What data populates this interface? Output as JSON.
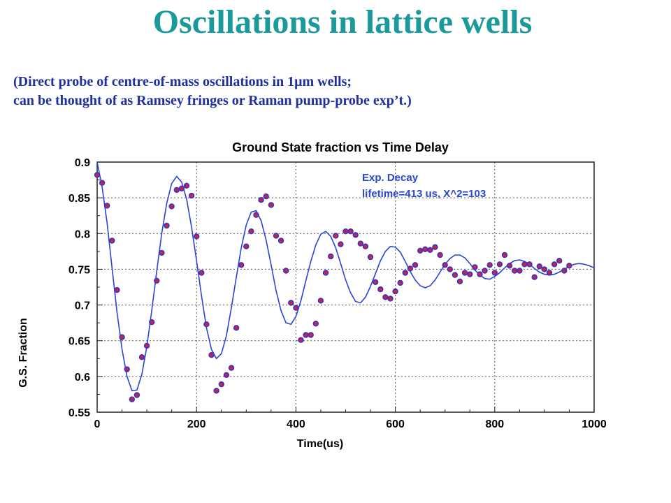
{
  "slide": {
    "title": "Oscillations in lattice wells",
    "subtitle_line1": "(Direct probe of centre-of-mass oscillations in 1μm wells;",
    "subtitle_line2": "can be thought of as Ramsey fringes or Raman pump-probe exp’t.)"
  },
  "chart_data": {
    "type": "scatter",
    "title": "Ground State fraction vs Time Delay",
    "xlabel": "Time(us)",
    "ylabel": "G.S. Fraction",
    "xlim": [
      0,
      1000
    ],
    "ylim": [
      0.55,
      0.9
    ],
    "x_ticks": [
      "0",
      "200",
      "400",
      "600",
      "800",
      "1000"
    ],
    "y_ticks": [
      "0.55",
      "0.6",
      "0.65",
      "0.7",
      "0.75",
      "0.8",
      "0.85",
      "0.9"
    ],
    "grid": true,
    "annotation_line1": "Exp. Decay",
    "annotation_line2": "lifetime=413 us, X^2=103",
    "colors": {
      "points": "#c0283c",
      "point_edge": "#3a2fd0",
      "fit": "#2a44d8",
      "annotation": "#2a44d8"
    },
    "series": [
      {
        "style": "points",
        "x": [
          0,
          10,
          20,
          30,
          40,
          50,
          60,
          70,
          80,
          90,
          100,
          110,
          120,
          130,
          140,
          150,
          160,
          170,
          180,
          190,
          200,
          210,
          220,
          230,
          240,
          250,
          260,
          270,
          280,
          290,
          300,
          310,
          320,
          330,
          340,
          350,
          360,
          370,
          380,
          390,
          400,
          410,
          420,
          430,
          440,
          450,
          460,
          470,
          480,
          490,
          500,
          510,
          520,
          530,
          540,
          550,
          560,
          570,
          580,
          590,
          600,
          610,
          620,
          630,
          640,
          650,
          660,
          670,
          680,
          690,
          700,
          710,
          720,
          730,
          740,
          750,
          760,
          770,
          780,
          790,
          800,
          810,
          820,
          830,
          840,
          850,
          860,
          870,
          880,
          890,
          900,
          910,
          920,
          930,
          940,
          950
        ],
        "y": [
          0.882,
          0.871,
          0.839,
          0.79,
          0.721,
          0.655,
          0.61,
          0.568,
          0.574,
          0.627,
          0.643,
          0.676,
          0.734,
          0.773,
          0.811,
          0.838,
          0.861,
          0.863,
          0.867,
          0.853,
          0.796,
          0.745,
          0.673,
          0.63,
          0.58,
          0.589,
          0.602,
          0.612,
          0.668,
          0.756,
          0.782,
          0.803,
          0.826,
          0.847,
          0.852,
          0.84,
          0.797,
          0.79,
          0.748,
          0.703,
          0.696,
          0.651,
          0.658,
          0.658,
          0.674,
          0.706,
          0.745,
          0.768,
          0.797,
          0.785,
          0.803,
          0.803,
          0.798,
          0.786,
          0.782,
          0.767,
          0.732,
          0.722,
          0.711,
          0.709,
          0.719,
          0.731,
          0.745,
          0.751,
          0.756,
          0.776,
          0.778,
          0.777,
          0.781,
          0.77,
          0.756,
          0.75,
          0.742,
          0.733,
          0.745,
          0.743,
          0.753,
          0.743,
          0.748,
          0.756,
          0.745,
          0.757,
          0.77,
          0.755,
          0.748,
          0.748,
          0.757,
          0.757,
          0.739,
          0.754,
          0.75,
          0.745,
          0.757,
          0.762,
          0.748,
          0.755
        ]
      },
      {
        "style": "line",
        "model": "exponentially damped sinusoid fit",
        "x": [
          0,
          10,
          20,
          30,
          40,
          50,
          60,
          70,
          80,
          90,
          100,
          110,
          120,
          130,
          140,
          150,
          160,
          170,
          180,
          190,
          200,
          210,
          220,
          230,
          240,
          250,
          260,
          270,
          280,
          290,
          300,
          310,
          320,
          330,
          340,
          350,
          360,
          370,
          380,
          390,
          400,
          410,
          420,
          430,
          440,
          450,
          460,
          470,
          480,
          490,
          500,
          510,
          520,
          530,
          540,
          550,
          560,
          570,
          580,
          590,
          600,
          610,
          620,
          630,
          640,
          650,
          660,
          670,
          680,
          690,
          700,
          710,
          720,
          730,
          740,
          750,
          760,
          770,
          780,
          790,
          800,
          810,
          820,
          830,
          840,
          850,
          860,
          870,
          880,
          890,
          900,
          910,
          920,
          930,
          940,
          950,
          960,
          970,
          980,
          990,
          1000
        ],
        "y": [
          0.9,
          0.865,
          0.815,
          0.752,
          0.69,
          0.638,
          0.6,
          0.58,
          0.581,
          0.603,
          0.642,
          0.693,
          0.748,
          0.8,
          0.842,
          0.87,
          0.88,
          0.872,
          0.848,
          0.809,
          0.762,
          0.713,
          0.668,
          0.638,
          0.625,
          0.632,
          0.657,
          0.696,
          0.739,
          0.78,
          0.812,
          0.83,
          0.832,
          0.818,
          0.791,
          0.756,
          0.72,
          0.692,
          0.675,
          0.673,
          0.684,
          0.706,
          0.734,
          0.761,
          0.784,
          0.799,
          0.803,
          0.796,
          0.78,
          0.758,
          0.735,
          0.717,
          0.705,
          0.703,
          0.711,
          0.726,
          0.744,
          0.762,
          0.775,
          0.782,
          0.781,
          0.774,
          0.761,
          0.747,
          0.735,
          0.727,
          0.724,
          0.727,
          0.735,
          0.746,
          0.757,
          0.765,
          0.77,
          0.77,
          0.766,
          0.758,
          0.749,
          0.742,
          0.737,
          0.736,
          0.74,
          0.745,
          0.752,
          0.758,
          0.762,
          0.763,
          0.761,
          0.757,
          0.751,
          0.746,
          0.743,
          0.742,
          0.743,
          0.746,
          0.75,
          0.754,
          0.757,
          0.758,
          0.757,
          0.755,
          0.752
        ]
      }
    ]
  }
}
